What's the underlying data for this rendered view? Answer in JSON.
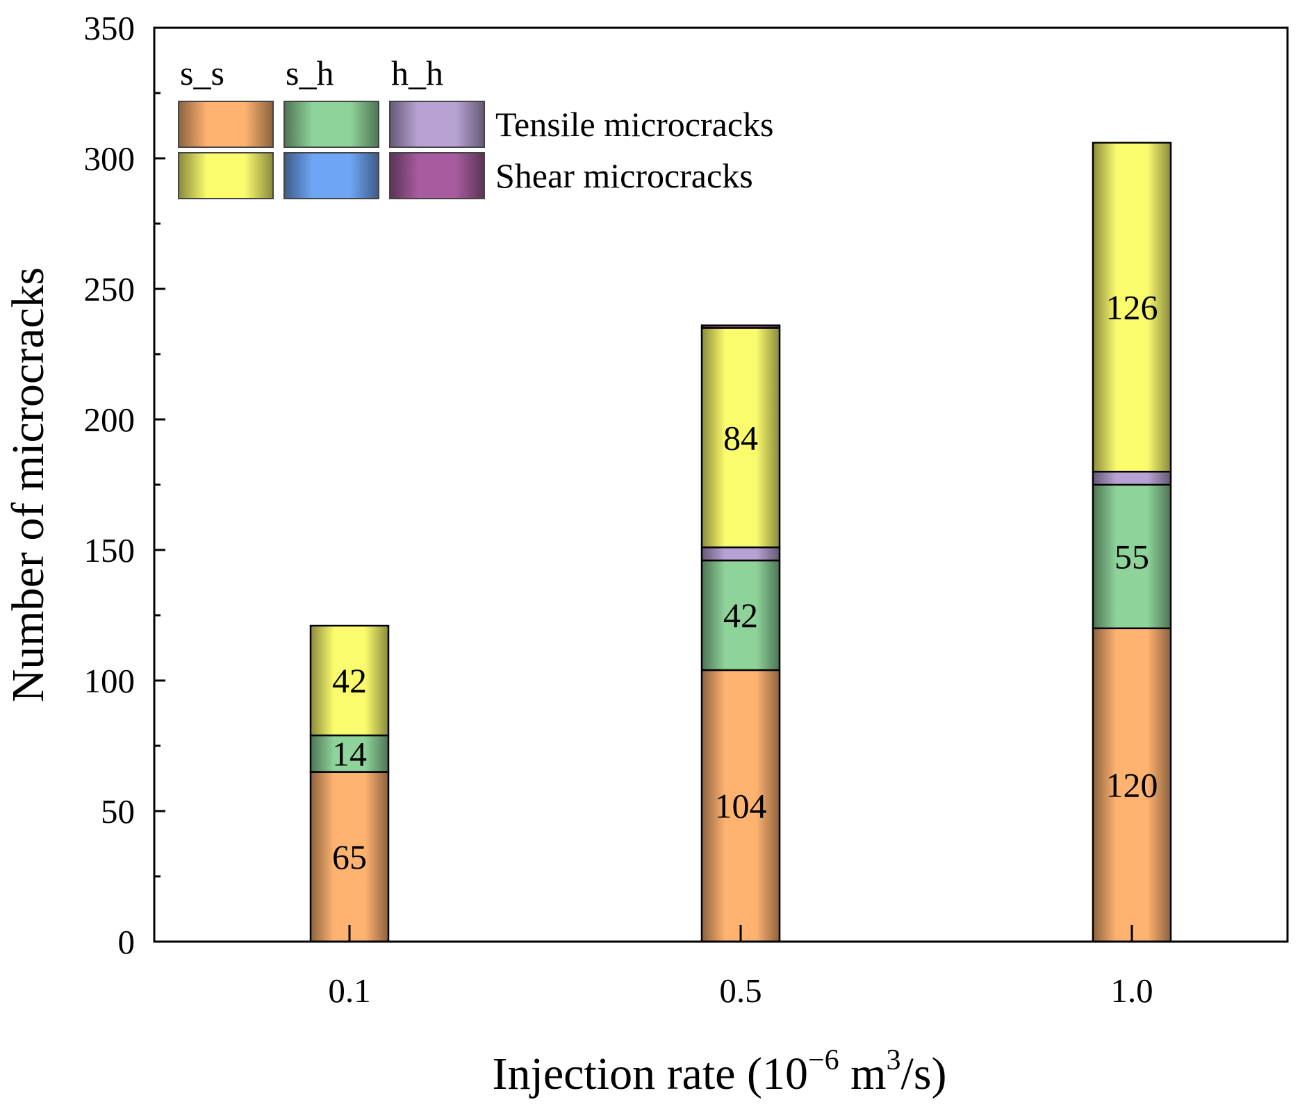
{
  "chart_data": {
    "type": "bar",
    "stacked": true,
    "categories": [
      "0.1",
      "0.5",
      "1.0"
    ],
    "xlabel": {
      "prefix": "Injection rate (10",
      "exp": "−6",
      "mid": " m",
      "exp2": "3",
      "suffix": "/s)"
    },
    "ylabel": "Number of microcracks",
    "ylim": [
      0,
      350
    ],
    "yticks": [
      0,
      50,
      100,
      150,
      200,
      250,
      300,
      350
    ],
    "series": [
      {
        "key": "tensile_s_s",
        "group": "Tensile microcracks",
        "type": "s_s",
        "color": "#FFB371",
        "values": [
          65,
          104,
          120
        ]
      },
      {
        "key": "tensile_s_h",
        "group": "Tensile microcracks",
        "type": "s_h",
        "color": "#8ED39A",
        "values": [
          14,
          42,
          55
        ]
      },
      {
        "key": "tensile_h_h",
        "group": "Tensile microcracks",
        "type": "h_h",
        "color": "#B8A2D4",
        "values": [
          0,
          5,
          5
        ]
      },
      {
        "key": "shear_s_s",
        "group": "Shear microcracks",
        "type": "s_s",
        "color": "#FBFB6E",
        "values": [
          42,
          84,
          126
        ]
      },
      {
        "key": "shear_s_h",
        "group": "Shear microcracks",
        "type": "s_h",
        "color": "#6FA5F5",
        "values": [
          0,
          0,
          0
        ]
      },
      {
        "key": "shear_h_h",
        "group": "Shear microcracks",
        "type": "h_h",
        "color": "#A65C9E",
        "values": [
          0,
          1,
          0
        ]
      }
    ],
    "labels": [
      {
        "series": 0,
        "cat": 0,
        "text": "65"
      },
      {
        "series": 1,
        "cat": 0,
        "text": "14"
      },
      {
        "series": 3,
        "cat": 0,
        "text": "42"
      },
      {
        "series": 0,
        "cat": 1,
        "text": "104"
      },
      {
        "series": 1,
        "cat": 1,
        "text": "42"
      },
      {
        "series": 3,
        "cat": 1,
        "text": "84"
      },
      {
        "series": 0,
        "cat": 2,
        "text": "120"
      },
      {
        "series": 1,
        "cat": 2,
        "text": "55"
      },
      {
        "series": 3,
        "cat": 2,
        "text": "126"
      }
    ],
    "legend": {
      "placement": "top-left",
      "columns": [
        "s_s",
        "s_h",
        "h_h"
      ],
      "rows": [
        "Tensile microcracks",
        "Shear microcracks"
      ]
    },
    "grid": false
  }
}
